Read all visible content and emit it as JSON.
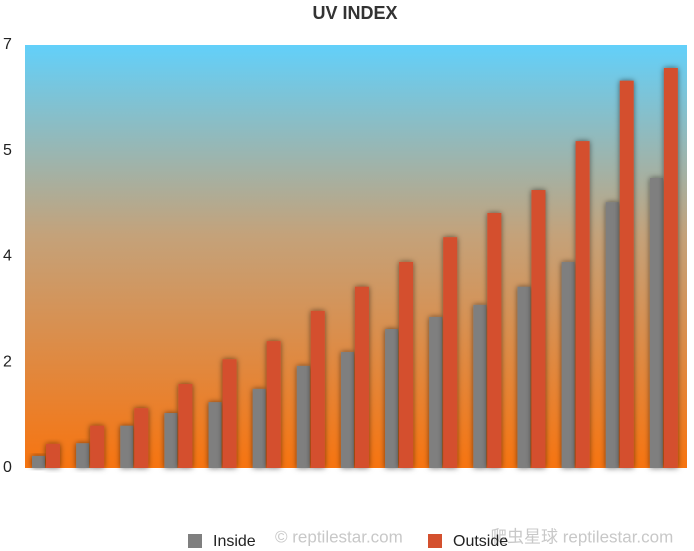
{
  "chart_data": {
    "type": "bar",
    "title": "UV INDEX",
    "series": [
      {
        "name": "Inside",
        "color": "#7f7f7f",
        "values": [
          0.2,
          0.41,
          0.7,
          0.91,
          1.09,
          1.31,
          1.69,
          1.92,
          2.3,
          2.5,
          2.7,
          3.0,
          3.41,
          4.4,
          4.8
        ]
      },
      {
        "name": "Outside",
        "color": "#d4502e",
        "values": [
          0.4,
          0.7,
          0.99,
          1.39,
          1.8,
          2.1,
          2.6,
          3.0,
          3.41,
          3.82,
          4.22,
          4.6,
          5.41,
          6.41,
          6.62
        ]
      }
    ],
    "ylim": [
      0,
      7
    ],
    "yticks": [
      0,
      {
        "value": 1.75,
        "label": "2"
      },
      {
        "value": 3.5,
        "label": "4"
      },
      {
        "value": 5.25,
        "label": "5"
      },
      7
    ],
    "watermarks": [
      "© reptilestar.com",
      "爬虫星球 reptilestar.com"
    ]
  }
}
